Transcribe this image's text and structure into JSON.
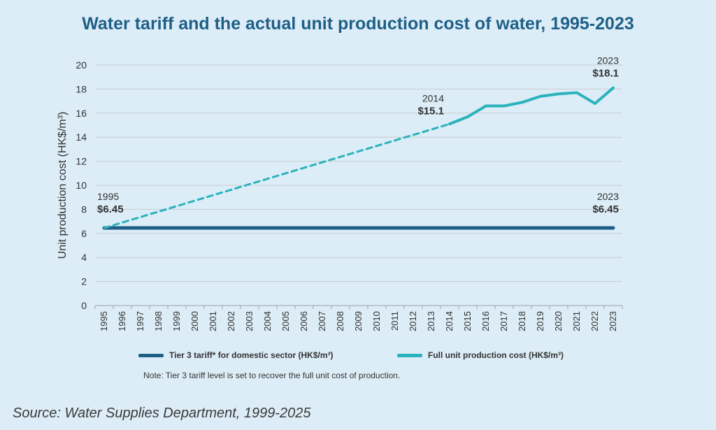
{
  "title": "Water tariff and the actual unit production cost of water, 1995-2023",
  "source": "Source: Water Supplies Department, 1999-2025",
  "note": "Note: Tier 3 tariff level is set to recover the full unit cost of production.",
  "colors": {
    "background": "#dcedf7",
    "title": "#1f5f87",
    "tariff": "#1f5f87",
    "cost": "#2bb3bd",
    "grid": "#c5ccd1"
  },
  "chart_data": {
    "type": "line",
    "ylabel": "Unit production cost (HK$/m³)",
    "xlabel": "",
    "ylim": [
      0,
      20
    ],
    "yticks": [
      0,
      2,
      4,
      6,
      8,
      10,
      12,
      14,
      16,
      18,
      20
    ],
    "grid": true,
    "legend_position": "bottom",
    "x": [
      1995,
      1996,
      1997,
      1998,
      1999,
      2000,
      2001,
      2002,
      2003,
      2004,
      2005,
      2006,
      2007,
      2008,
      2009,
      2010,
      2011,
      2012,
      2013,
      2014,
      2015,
      2016,
      2017,
      2018,
      2019,
      2020,
      2021,
      2022,
      2023
    ],
    "series": [
      {
        "name": "Tier 3 tariff* for domestic sector (HK$/m³)",
        "x": [
          1995,
          2023
        ],
        "values": [
          6.45,
          6.45
        ],
        "style": "solid"
      },
      {
        "name": "Full unit production cost (HK$/m³)",
        "x": [
          1995,
          2014
        ],
        "values": [
          6.45,
          15.1
        ],
        "style": "dashed",
        "legend": false
      },
      {
        "name": "Full unit production cost (HK$/m³)",
        "x": [
          2014,
          2015,
          2016,
          2017,
          2018,
          2019,
          2020,
          2021,
          2022,
          2023
        ],
        "values": [
          15.1,
          15.7,
          16.6,
          16.6,
          16.9,
          17.4,
          17.6,
          17.7,
          16.8,
          18.1
        ],
        "style": "solid"
      }
    ],
    "annotations": [
      {
        "year": "1995",
        "value": "$6.45",
        "x": 1995,
        "y": 6.45,
        "anchor": "start"
      },
      {
        "year": "2014",
        "value": "$15.1",
        "x": 2014,
        "y": 15.1,
        "anchor": "end"
      },
      {
        "year": "2023",
        "value": "$18.1",
        "x": 2023,
        "y": 18.1,
        "anchor": "end"
      },
      {
        "year": "2023",
        "value": "$6.45",
        "x": 2023,
        "y": 6.45,
        "anchor": "end"
      }
    ]
  }
}
